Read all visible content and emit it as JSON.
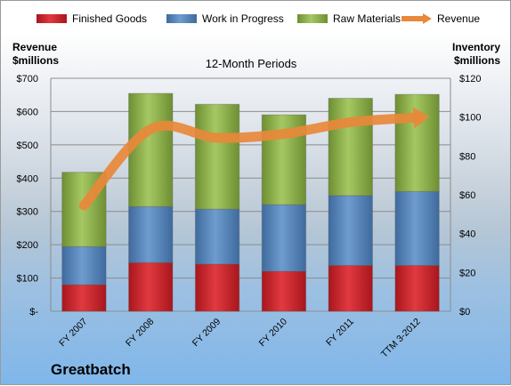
{
  "chart_data": {
    "type": "bar",
    "stacked": true,
    "title": "12-Month Periods",
    "company": "Greatbatch",
    "left_axis_label": [
      "Revenue",
      "$millions"
    ],
    "right_axis_label": [
      "Inventory",
      "$millions"
    ],
    "categories": [
      "FY 2007",
      "FY 2008",
      "FY 2009",
      "FY 2010",
      "FY 2011",
      "TTM 3-2012"
    ],
    "left_axis": {
      "range": [
        0,
        700
      ],
      "ticks": [
        "$-",
        "$100",
        "$200",
        "$300",
        "$400",
        "$500",
        "$600",
        "$700"
      ]
    },
    "right_axis": {
      "range": [
        0,
        120
      ],
      "ticks": [
        "$0",
        "$20",
        "$40",
        "$60",
        "$80",
        "$100",
        "$120"
      ]
    },
    "legend_position": "top",
    "series": [
      {
        "name": "Finished Goods",
        "axis": "right",
        "color": "#c8262c",
        "values": [
          13.7,
          25.1,
          24.3,
          20.6,
          23.6,
          23.6
        ]
      },
      {
        "name": "Work in Progress",
        "axis": "right",
        "color": "#4f81bd",
        "values": [
          19.6,
          28.8,
          28.3,
          34.3,
          36.0,
          38.1
        ]
      },
      {
        "name": "Raw Materials",
        "axis": "right",
        "color": "#8faf4a",
        "values": [
          38.3,
          58.3,
          54.0,
          46.3,
          50.1,
          50.0
        ]
      },
      {
        "name": "Revenue",
        "axis": "left",
        "type": "line",
        "color": "#e8883a",
        "values": [
          318,
          547,
          521,
          533,
          568,
          582
        ]
      }
    ]
  }
}
